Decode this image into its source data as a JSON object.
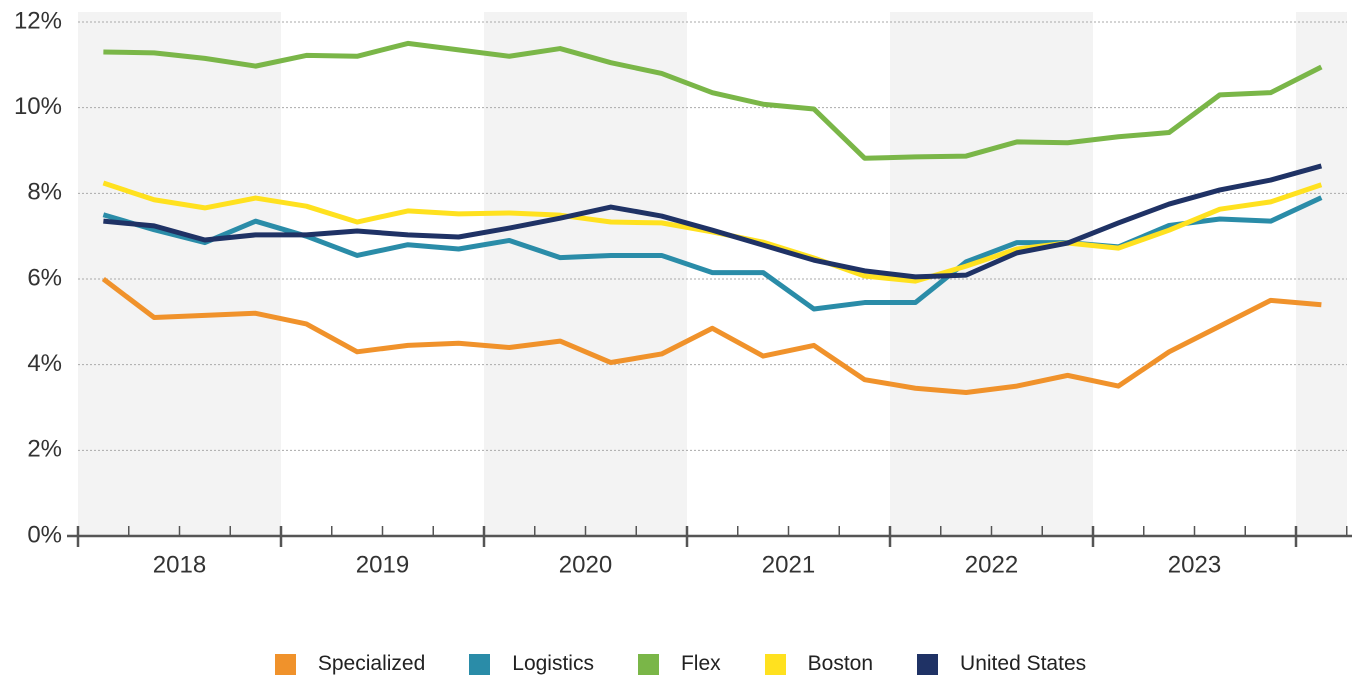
{
  "chart_data": {
    "type": "line",
    "categories": [
      null,
      null,
      null,
      null,
      null,
      null,
      null,
      null,
      null,
      null,
      null,
      null,
      null,
      null,
      null,
      null,
      null,
      null,
      null,
      null,
      null,
      null,
      null,
      null,
      null
    ],
    "year_labels": [
      "2018",
      "2019",
      "2020",
      "2021",
      "2022",
      "2023"
    ],
    "series": [
      {
        "name": "Specialized",
        "color": "#f0922b",
        "values": [
          6.0,
          5.1,
          5.15,
          5.2,
          4.95,
          4.3,
          4.45,
          4.5,
          4.4,
          4.55,
          4.05,
          4.25,
          4.85,
          4.2,
          4.45,
          3.65,
          3.45,
          3.35,
          3.5,
          3.75,
          3.5,
          4.3,
          4.9,
          5.5,
          5.4
        ]
      },
      {
        "name": "Logistics",
        "color": "#2a8ca8",
        "values": [
          7.5,
          7.15,
          6.85,
          7.35,
          7.0,
          6.55,
          6.8,
          6.7,
          6.9,
          6.5,
          6.55,
          6.55,
          6.15,
          6.15,
          5.3,
          5.45,
          5.45,
          6.4,
          6.85,
          6.85,
          6.75,
          7.25,
          7.4,
          7.35,
          7.9
        ]
      },
      {
        "name": "Flex",
        "color": "#7ab648",
        "values": [
          11.3,
          11.28,
          11.15,
          10.97,
          11.22,
          11.2,
          11.5,
          11.35,
          11.2,
          11.38,
          11.05,
          10.8,
          10.35,
          10.08,
          9.97,
          8.82,
          8.85,
          8.87,
          9.2,
          9.18,
          9.32,
          9.42,
          10.3,
          10.35,
          10.95
        ]
      },
      {
        "name": "Boston",
        "color": "#ffe11f",
        "values": [
          8.24,
          7.85,
          7.66,
          7.89,
          7.7,
          7.33,
          7.59,
          7.52,
          7.54,
          7.49,
          7.33,
          7.31,
          7.1,
          6.86,
          6.49,
          6.07,
          5.95,
          6.3,
          6.7,
          6.84,
          6.72,
          7.14,
          7.63,
          7.8,
          8.2
        ]
      },
      {
        "name": "United States",
        "color": "#1f3265",
        "values": [
          7.35,
          7.24,
          6.91,
          7.03,
          7.03,
          7.12,
          7.03,
          6.98,
          7.19,
          7.42,
          7.68,
          7.47,
          7.14,
          6.79,
          6.44,
          6.19,
          6.05,
          6.09,
          6.61,
          6.84,
          7.31,
          7.75,
          8.08,
          8.31,
          8.64
        ]
      }
    ],
    "ylim": [
      0,
      12
    ],
    "yticks": [
      {
        "value": 0,
        "label": "0%"
      },
      {
        "value": 2,
        "label": "2%"
      },
      {
        "value": 4,
        "label": "4%"
      },
      {
        "value": 6,
        "label": "6%"
      },
      {
        "value": 8,
        "label": "8%"
      },
      {
        "value": 10,
        "label": "10%"
      },
      {
        "value": 12,
        "label": "12%"
      }
    ],
    "grid": true
  }
}
